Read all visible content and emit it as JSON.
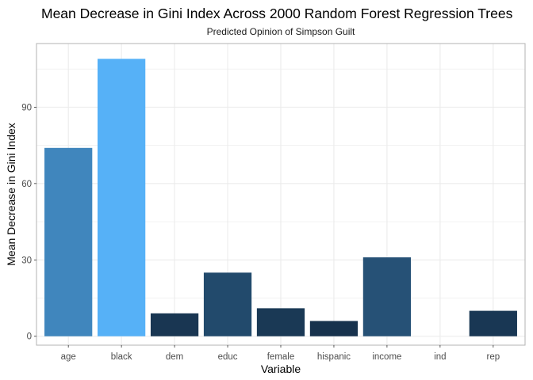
{
  "chart_data": {
    "type": "bar",
    "title": "Mean Decrease in Gini Index Across 2000 Random Forest Regression Trees",
    "subtitle": "Predicted Opinion of Simpson Guilt",
    "xlabel": "Variable",
    "ylabel": "Mean Decrease in Gini Index",
    "categories": [
      "age",
      "black",
      "dem",
      "educ",
      "female",
      "hispanic",
      "income",
      "ind",
      "rep"
    ],
    "values": [
      74,
      109,
      9,
      25,
      11,
      6,
      31,
      0,
      10
    ],
    "ylim": [
      -3.5,
      115
    ],
    "yticks": [
      0,
      30,
      60,
      90
    ],
    "yminor": [
      15,
      45,
      75,
      105
    ],
    "grid": true,
    "legend": "none",
    "color_scale": {
      "low": "#132B43",
      "high": "#56B1F7"
    },
    "panel_border_color": "#b3b3b3",
    "grid_color": "#ebebeb"
  }
}
